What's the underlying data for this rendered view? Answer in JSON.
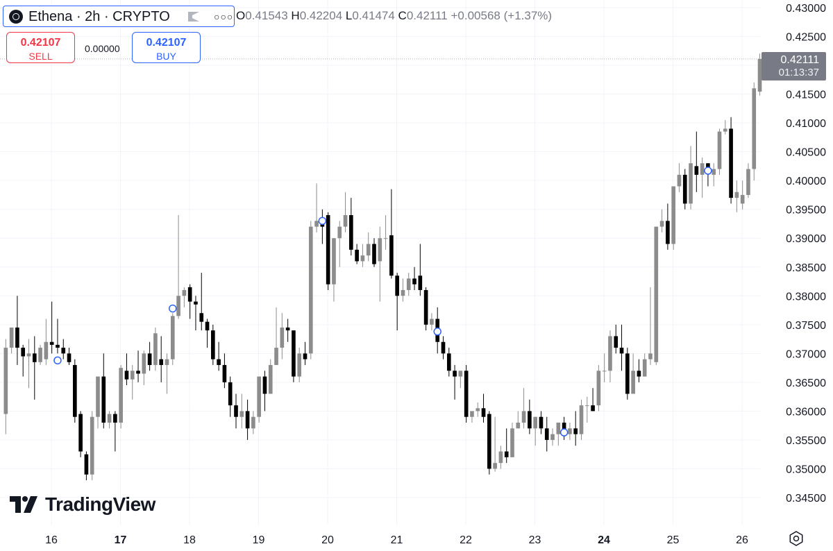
{
  "header": {
    "symbol_title": "Ethena · 2h · CRYPTO",
    "symbol_icon": "ethena-logo-icon",
    "ohlc": {
      "open_label": "O",
      "open": "0.41543",
      "high_label": "H",
      "high": "0.42204",
      "low_label": "L",
      "low": "0.41474",
      "close_label": "C",
      "close": "0.42111",
      "change": "+0.00568 (+1.37%)"
    }
  },
  "trade": {
    "sell_price": "0.42107",
    "sell_label": "SELL",
    "spread": "0.00000",
    "buy_price": "0.42107",
    "buy_label": "BUY"
  },
  "last_price": {
    "price": "0.42111",
    "countdown": "01:13:37"
  },
  "branding": {
    "logo_text": "TradingView"
  },
  "colors": {
    "up": "#8c8c8c",
    "down": "#000000",
    "grid": "#f0f3fa",
    "sell": "#f23645",
    "buy": "#2962ff",
    "price_tag": "#787b86",
    "marker": "#2962ff"
  },
  "chart_data": {
    "type": "candlestick",
    "interval": "2h",
    "ylim": [
      0.3425,
      0.4315
    ],
    "y_ticks": [
      "0.43000",
      "0.42500",
      "0.42000",
      "0.41500",
      "0.41000",
      "0.40500",
      "0.40000",
      "0.39500",
      "0.39000",
      "0.38500",
      "0.38000",
      "0.37500",
      "0.37000",
      "0.36500",
      "0.36000",
      "0.35500",
      "0.35000",
      "0.34500"
    ],
    "y_tick_values": [
      0.43,
      0.425,
      0.42,
      0.415,
      0.41,
      0.405,
      0.4,
      0.395,
      0.39,
      0.385,
      0.38,
      0.375,
      0.37,
      0.365,
      0.36,
      0.355,
      0.35,
      0.345
    ],
    "x_ticks": [
      {
        "label": "16",
        "day": 16,
        "bold": false
      },
      {
        "label": "17",
        "day": 17,
        "bold": true
      },
      {
        "label": "18",
        "day": 18,
        "bold": false
      },
      {
        "label": "19",
        "day": 19,
        "bold": false
      },
      {
        "label": "20",
        "day": 20,
        "bold": false
      },
      {
        "label": "21",
        "day": 21,
        "bold": false
      },
      {
        "label": "22",
        "day": 22,
        "bold": false
      },
      {
        "label": "23",
        "day": 23,
        "bold": false
      },
      {
        "label": "24",
        "day": 24,
        "bold": true
      },
      {
        "label": "25",
        "day": 25,
        "bold": false
      },
      {
        "label": "26",
        "day": 26,
        "bold": false
      }
    ],
    "start_day": 15.34,
    "bars_per_day": 12,
    "candles": [
      [
        0.3595,
        0.3725,
        0.356,
        0.371
      ],
      [
        0.371,
        0.3745,
        0.37,
        0.3745
      ],
      [
        0.3745,
        0.38,
        0.368,
        0.371
      ],
      [
        0.371,
        0.3715,
        0.366,
        0.3695
      ],
      [
        0.3695,
        0.3725,
        0.364,
        0.37
      ],
      [
        0.37,
        0.373,
        0.362,
        0.3685
      ],
      [
        0.3685,
        0.3715,
        0.368,
        0.371
      ],
      [
        0.369,
        0.376,
        0.368,
        0.372
      ],
      [
        0.372,
        0.379,
        0.37,
        0.3715
      ],
      [
        0.3715,
        0.376,
        0.37,
        0.371
      ],
      [
        0.371,
        0.3725,
        0.369,
        0.37
      ],
      [
        0.37,
        0.371,
        0.368,
        0.3685
      ],
      [
        0.368,
        0.369,
        0.358,
        0.359
      ],
      [
        0.3595,
        0.36,
        0.352,
        0.353
      ],
      [
        0.3525,
        0.353,
        0.348,
        0.349
      ],
      [
        0.349,
        0.36,
        0.348,
        0.359
      ],
      [
        0.359,
        0.366,
        0.357,
        0.366
      ],
      [
        0.366,
        0.37,
        0.357,
        0.358
      ],
      [
        0.358,
        0.36,
        0.357,
        0.3595
      ],
      [
        0.3595,
        0.36,
        0.353,
        0.358
      ],
      [
        0.358,
        0.368,
        0.357,
        0.3675
      ],
      [
        0.367,
        0.37,
        0.3645,
        0.3655
      ],
      [
        0.3655,
        0.368,
        0.362,
        0.367
      ],
      [
        0.367,
        0.3705,
        0.365,
        0.3665
      ],
      [
        0.3665,
        0.3705,
        0.3645,
        0.37
      ],
      [
        0.37,
        0.372,
        0.367,
        0.368
      ],
      [
        0.368,
        0.3745,
        0.367,
        0.3735
      ],
      [
        0.369,
        0.373,
        0.365,
        0.368
      ],
      [
        0.368,
        0.37,
        0.363,
        0.369
      ],
      [
        0.369,
        0.377,
        0.368,
        0.3765
      ],
      [
        0.3765,
        0.394,
        0.376,
        0.38
      ],
      [
        0.38,
        0.3815,
        0.378,
        0.381
      ],
      [
        0.3815,
        0.382,
        0.376,
        0.379
      ],
      [
        0.379,
        0.38,
        0.374,
        0.3785
      ],
      [
        0.377,
        0.384,
        0.374,
        0.3755
      ],
      [
        0.3755,
        0.376,
        0.371,
        0.374
      ],
      [
        0.374,
        0.375,
        0.368,
        0.369
      ],
      [
        0.369,
        0.372,
        0.367,
        0.368
      ],
      [
        0.368,
        0.37,
        0.364,
        0.365
      ],
      [
        0.365,
        0.366,
        0.359,
        0.361
      ],
      [
        0.361,
        0.363,
        0.357,
        0.359
      ],
      [
        0.359,
        0.363,
        0.357,
        0.36
      ],
      [
        0.36,
        0.362,
        0.355,
        0.357
      ],
      [
        0.357,
        0.36,
        0.356,
        0.359
      ],
      [
        0.359,
        0.366,
        0.358,
        0.366
      ],
      [
        0.366,
        0.367,
        0.36,
        0.363
      ],
      [
        0.363,
        0.369,
        0.363,
        0.368
      ],
      [
        0.368,
        0.378,
        0.368,
        0.371
      ],
      [
        0.371,
        0.377,
        0.369,
        0.3745
      ],
      [
        0.3745,
        0.376,
        0.372,
        0.374
      ],
      [
        0.374,
        0.374,
        0.365,
        0.366
      ],
      [
        0.366,
        0.371,
        0.365,
        0.37
      ],
      [
        0.37,
        0.372,
        0.368,
        0.369
      ],
      [
        0.37,
        0.393,
        0.369,
        0.392
      ],
      [
        0.392,
        0.3995,
        0.391,
        0.393
      ],
      [
        0.393,
        0.395,
        0.389,
        0.392
      ],
      [
        0.394,
        0.3945,
        0.381,
        0.382
      ],
      [
        0.382,
        0.39,
        0.379,
        0.39
      ],
      [
        0.39,
        0.393,
        0.385,
        0.392
      ],
      [
        0.392,
        0.398,
        0.391,
        0.394
      ],
      [
        0.394,
        0.397,
        0.387,
        0.388
      ],
      [
        0.388,
        0.389,
        0.3855,
        0.386
      ],
      [
        0.386,
        0.389,
        0.385,
        0.387
      ],
      [
        0.387,
        0.391,
        0.386,
        0.389
      ],
      [
        0.389,
        0.39,
        0.385,
        0.3855
      ],
      [
        0.386,
        0.392,
        0.379,
        0.39
      ],
      [
        0.39,
        0.394,
        0.388,
        0.39
      ],
      [
        0.3905,
        0.3985,
        0.383,
        0.3835
      ],
      [
        0.3835,
        0.384,
        0.374,
        0.38
      ],
      [
        0.38,
        0.383,
        0.379,
        0.381
      ],
      [
        0.381,
        0.384,
        0.38,
        0.383
      ],
      [
        0.383,
        0.385,
        0.381,
        0.382
      ],
      [
        0.3835,
        0.389,
        0.38,
        0.381
      ],
      [
        0.381,
        0.3815,
        0.374,
        0.375
      ],
      [
        0.375,
        0.377,
        0.374,
        0.376
      ],
      [
        0.376,
        0.378,
        0.37,
        0.372
      ],
      [
        0.372,
        0.373,
        0.369,
        0.37
      ],
      [
        0.37,
        0.371,
        0.366,
        0.367
      ],
      [
        0.367,
        0.368,
        0.362,
        0.366
      ],
      [
        0.366,
        0.367,
        0.364,
        0.367
      ],
      [
        0.367,
        0.368,
        0.358,
        0.359
      ],
      [
        0.359,
        0.36,
        0.358,
        0.36
      ],
      [
        0.36,
        0.3615,
        0.359,
        0.3605
      ],
      [
        0.3605,
        0.363,
        0.358,
        0.359
      ],
      [
        0.3595,
        0.36,
        0.349,
        0.35
      ],
      [
        0.35,
        0.359,
        0.3495,
        0.351
      ],
      [
        0.351,
        0.354,
        0.35,
        0.353
      ],
      [
        0.353,
        0.357,
        0.351,
        0.352
      ],
      [
        0.352,
        0.358,
        0.352,
        0.357
      ],
      [
        0.357,
        0.36,
        0.357,
        0.358
      ],
      [
        0.358,
        0.364,
        0.357,
        0.36
      ],
      [
        0.36,
        0.362,
        0.356,
        0.357
      ],
      [
        0.357,
        0.359,
        0.354,
        0.359
      ],
      [
        0.359,
        0.36,
        0.356,
        0.357
      ],
      [
        0.357,
        0.359,
        0.353,
        0.355
      ],
      [
        0.355,
        0.357,
        0.354,
        0.356
      ],
      [
        0.356,
        0.358,
        0.354,
        0.358
      ],
      [
        0.358,
        0.359,
        0.355,
        0.356
      ],
      [
        0.356,
        0.358,
        0.355,
        0.357
      ],
      [
        0.357,
        0.36,
        0.354,
        0.356
      ],
      [
        0.356,
        0.362,
        0.355,
        0.361
      ],
      [
        0.361,
        0.3625,
        0.358,
        0.361
      ],
      [
        0.361,
        0.364,
        0.36,
        0.36
      ],
      [
        0.361,
        0.368,
        0.36,
        0.367
      ],
      [
        0.367,
        0.37,
        0.365,
        0.367
      ],
      [
        0.367,
        0.374,
        0.365,
        0.373
      ],
      [
        0.373,
        0.375,
        0.37,
        0.371
      ],
      [
        0.371,
        0.375,
        0.367,
        0.37
      ],
      [
        0.37,
        0.371,
        0.362,
        0.363
      ],
      [
        0.363,
        0.37,
        0.363,
        0.367
      ],
      [
        0.367,
        0.369,
        0.365,
        0.366
      ],
      [
        0.366,
        0.37,
        0.366,
        0.369
      ],
      [
        0.369,
        0.3815,
        0.368,
        0.37
      ],
      [
        0.3685,
        0.392,
        0.368,
        0.392
      ],
      [
        0.392,
        0.395,
        0.391,
        0.393
      ],
      [
        0.393,
        0.396,
        0.388,
        0.389
      ],
      [
        0.389,
        0.399,
        0.388,
        0.399
      ],
      [
        0.399,
        0.403,
        0.398,
        0.401
      ],
      [
        0.401,
        0.402,
        0.395,
        0.396
      ],
      [
        0.396,
        0.406,
        0.395,
        0.403
      ],
      [
        0.4025,
        0.4085,
        0.398,
        0.401
      ],
      [
        0.401,
        0.404,
        0.397,
        0.403
      ],
      [
        0.403,
        0.403,
        0.399,
        0.4015
      ],
      [
        0.401,
        0.403,
        0.399,
        0.402
      ],
      [
        0.402,
        0.409,
        0.401,
        0.4085
      ],
      [
        0.4085,
        0.4105,
        0.408,
        0.409
      ],
      [
        0.409,
        0.411,
        0.396,
        0.397
      ],
      [
        0.397,
        0.4,
        0.3945,
        0.398
      ],
      [
        0.396,
        0.4,
        0.395,
        0.3975
      ],
      [
        0.3975,
        0.403,
        0.397,
        0.402
      ],
      [
        0.402,
        0.417,
        0.4,
        0.416
      ],
      [
        0.41543,
        0.42204,
        0.41474,
        0.42111
      ]
    ],
    "event_markers": [
      {
        "bar": 9,
        "price": 0.3688
      },
      {
        "bar": 29,
        "price": 0.3778
      },
      {
        "bar": 55,
        "price": 0.393
      },
      {
        "bar": 75,
        "price": 0.3738
      },
      {
        "bar": 97,
        "price": 0.3563
      },
      {
        "bar": 122,
        "price": 0.4017
      }
    ]
  }
}
